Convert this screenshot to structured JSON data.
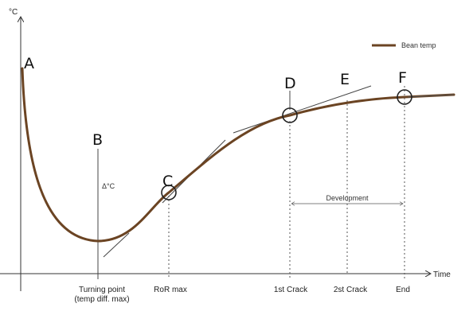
{
  "axes": {
    "y_label": "°C",
    "x_label": "Time"
  },
  "legend": {
    "label": "Bean temp",
    "color": "#6b4423"
  },
  "points": {
    "a": "A",
    "b": "B",
    "c": "C",
    "d": "D",
    "e": "E",
    "f": "F"
  },
  "delta_label": "Δ°C",
  "development_label": "Development",
  "x_ticks": {
    "turning_line1": "Turning point",
    "turning_line2": "(temp diff. max)",
    "ror": "RoR max",
    "first_crack": "1st Crack",
    "second_crack": "2st Crack",
    "end": "End"
  }
}
